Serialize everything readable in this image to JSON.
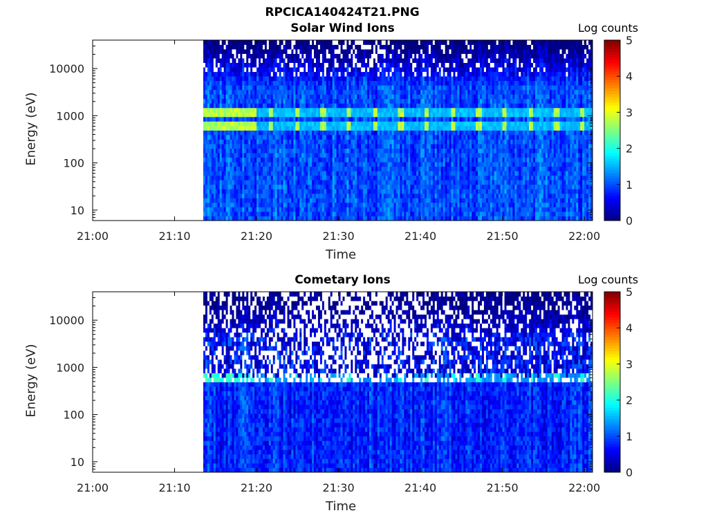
{
  "figure": {
    "title": "RPCICA140424T21.PNG"
  },
  "colorbar": {
    "label": "Log counts",
    "ticks": [
      0,
      1,
      2,
      3,
      4,
      5
    ],
    "range": [
      0,
      5
    ],
    "colormap": "jet",
    "colors": [
      "#00008f",
      "#0000ff",
      "#00ffff",
      "#ffff00",
      "#ff0000",
      "#800000"
    ]
  },
  "chart_data": [
    {
      "type": "heatmap",
      "title": "Solar Wind Ions",
      "xlabel": "Time",
      "ylabel": "Energy (eV)",
      "x_ticks": [
        "21:00",
        "21:10",
        "21:20",
        "21:30",
        "21:40",
        "21:50",
        "22:00"
      ],
      "x_range": [
        "21:00",
        "22:01"
      ],
      "y_scale": "log",
      "y_ticks": [
        10,
        100,
        1000,
        10000
      ],
      "y_range": [
        6,
        40000
      ],
      "data_start": "21:13.5",
      "bright_energy_bands_eV": [
        560,
        1150
      ],
      "band_peak_log_counts": 3.0,
      "background_log_counts": 1.0
    },
    {
      "type": "heatmap",
      "title": "Cometary Ions",
      "xlabel": "Time",
      "ylabel": "Energy (eV)",
      "x_ticks": [
        "21:00",
        "21:10",
        "21:20",
        "21:30",
        "21:40",
        "21:50",
        "22:00"
      ],
      "x_range": [
        "21:00",
        "22:01"
      ],
      "y_scale": "log",
      "y_ticks": [
        10,
        100,
        1000,
        10000
      ],
      "y_range": [
        6,
        40000
      ],
      "data_start": "21:13.5",
      "bright_energy_bands_eV": [
        560
      ],
      "band_peak_log_counts": 2.3,
      "background_log_counts": 0.8
    }
  ]
}
